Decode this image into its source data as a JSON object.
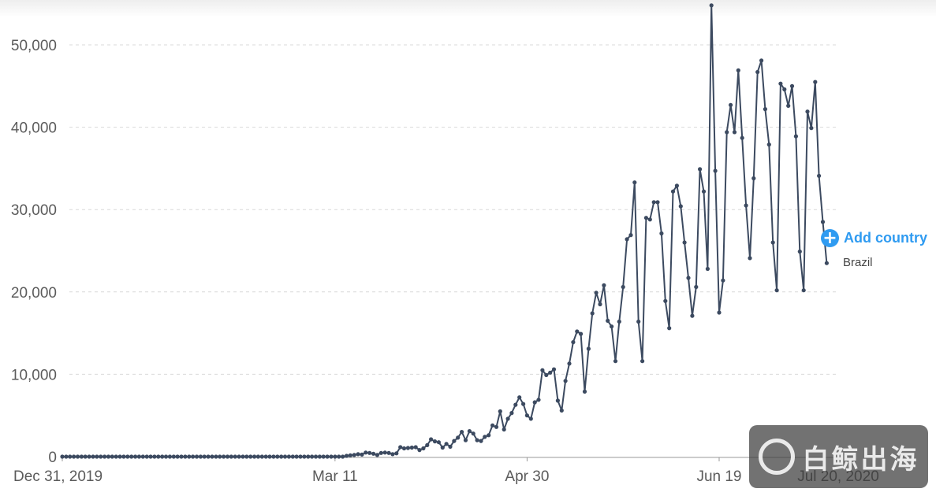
{
  "chart_data": {
    "type": "line",
    "y_ticks": [
      "0",
      "10,000",
      "20,000",
      "30,000",
      "40,000",
      "50,000"
    ],
    "y_tick_values": [
      0,
      10000,
      20000,
      30000,
      40000,
      50000
    ],
    "x_ticks": [
      "Dec 31, 2019",
      "Mar 11",
      "Apr 30",
      "Jun 19",
      "Jul 20, 2020"
    ],
    "x_tick_dates": [
      "2019-12-31",
      "2020-03-11",
      "2020-04-30",
      "2020-06-19",
      "2020-07-20"
    ],
    "x_range": [
      "2019-12-31",
      "2020-07-20"
    ],
    "ylim": [
      0,
      55000
    ],
    "grid": true,
    "series": [
      {
        "name": "Brazil",
        "color": "#3c4a60",
        "points": [
          [
            "2020-03-14",
            100
          ],
          [
            "2020-03-15",
            150
          ],
          [
            "2020-03-16",
            200
          ],
          [
            "2020-03-17",
            300
          ],
          [
            "2020-03-18",
            250
          ],
          [
            "2020-03-19",
            500
          ],
          [
            "2020-03-20",
            450
          ],
          [
            "2020-03-21",
            350
          ],
          [
            "2020-03-22",
            200
          ],
          [
            "2020-03-23",
            450
          ],
          [
            "2020-03-24",
            500
          ],
          [
            "2020-03-25",
            450
          ],
          [
            "2020-03-26",
            300
          ],
          [
            "2020-03-27",
            400
          ],
          [
            "2020-03-28",
            1150
          ],
          [
            "2020-03-29",
            1000
          ],
          [
            "2020-03-30",
            1050
          ],
          [
            "2020-03-31",
            1100
          ],
          [
            "2020-04-01",
            1150
          ],
          [
            "2020-04-02",
            800
          ],
          [
            "2020-04-03",
            1000
          ],
          [
            "2020-04-04",
            1400
          ],
          [
            "2020-04-05",
            2100
          ],
          [
            "2020-04-06",
            1850
          ],
          [
            "2020-04-07",
            1750
          ],
          [
            "2020-04-08",
            1100
          ],
          [
            "2020-04-09",
            1550
          ],
          [
            "2020-04-10",
            1200
          ],
          [
            "2020-04-11",
            1900
          ],
          [
            "2020-04-12",
            2300
          ],
          [
            "2020-04-13",
            3000
          ],
          [
            "2020-04-14",
            2000
          ],
          [
            "2020-04-15",
            3100
          ],
          [
            "2020-04-16",
            2800
          ],
          [
            "2020-04-17",
            2000
          ],
          [
            "2020-04-18",
            1900
          ],
          [
            "2020-04-19",
            2400
          ],
          [
            "2020-04-20",
            2600
          ],
          [
            "2020-04-21",
            3800
          ],
          [
            "2020-04-22",
            3600
          ],
          [
            "2020-04-23",
            5500
          ],
          [
            "2020-04-24",
            3300
          ],
          [
            "2020-04-25",
            4600
          ],
          [
            "2020-04-26",
            5300
          ],
          [
            "2020-04-27",
            6300
          ],
          [
            "2020-04-28",
            7200
          ],
          [
            "2020-04-29",
            6400
          ],
          [
            "2020-04-30",
            5000
          ],
          [
            "2020-05-01",
            4600
          ],
          [
            "2020-05-02",
            6600
          ],
          [
            "2020-05-03",
            6900
          ],
          [
            "2020-05-04",
            10500
          ],
          [
            "2020-05-05",
            9900
          ],
          [
            "2020-05-06",
            10200
          ],
          [
            "2020-05-07",
            10600
          ],
          [
            "2020-05-08",
            6800
          ],
          [
            "2020-05-09",
            5600
          ],
          [
            "2020-05-10",
            9200
          ],
          [
            "2020-05-11",
            11300
          ],
          [
            "2020-05-12",
            13900
          ],
          [
            "2020-05-13",
            15200
          ],
          [
            "2020-05-14",
            14900
          ],
          [
            "2020-05-15",
            7900
          ],
          [
            "2020-05-16",
            13100
          ],
          [
            "2020-05-17",
            17400
          ],
          [
            "2020-05-18",
            19900
          ],
          [
            "2020-05-19",
            18500
          ],
          [
            "2020-05-20",
            20800
          ],
          [
            "2020-05-21",
            16500
          ],
          [
            "2020-05-22",
            15800
          ],
          [
            "2020-05-23",
            11600
          ],
          [
            "2020-05-24",
            16400
          ],
          [
            "2020-05-25",
            20600
          ],
          [
            "2020-05-26",
            26400
          ],
          [
            "2020-05-27",
            26900
          ],
          [
            "2020-05-28",
            33300
          ],
          [
            "2020-05-29",
            16400
          ],
          [
            "2020-05-30",
            11600
          ],
          [
            "2020-05-31",
            29000
          ],
          [
            "2020-06-01",
            28800
          ],
          [
            "2020-06-02",
            30900
          ],
          [
            "2020-06-03",
            30900
          ],
          [
            "2020-06-04",
            27100
          ],
          [
            "2020-06-05",
            18900
          ],
          [
            "2020-06-06",
            15600
          ],
          [
            "2020-06-07",
            32200
          ],
          [
            "2020-06-08",
            32900
          ],
          [
            "2020-06-09",
            30400
          ],
          [
            "2020-06-10",
            26000
          ],
          [
            "2020-06-11",
            21700
          ],
          [
            "2020-06-12",
            17100
          ],
          [
            "2020-06-13",
            20600
          ],
          [
            "2020-06-14",
            34900
          ],
          [
            "2020-06-15",
            32200
          ],
          [
            "2020-06-16",
            22800
          ],
          [
            "2020-06-17",
            54800
          ],
          [
            "2020-06-18",
            34700
          ],
          [
            "2020-06-19",
            17500
          ],
          [
            "2020-06-20",
            21400
          ],
          [
            "2020-06-21",
            39400
          ],
          [
            "2020-06-22",
            42700
          ],
          [
            "2020-06-23",
            39400
          ],
          [
            "2020-06-24",
            46900
          ],
          [
            "2020-06-25",
            38700
          ],
          [
            "2020-06-26",
            30500
          ],
          [
            "2020-06-27",
            24100
          ],
          [
            "2020-06-28",
            33800
          ],
          [
            "2020-06-29",
            46700
          ],
          [
            "2020-06-30",
            48100
          ],
          [
            "2020-07-01",
            42200
          ],
          [
            "2020-07-02",
            37900
          ],
          [
            "2020-07-03",
            26000
          ],
          [
            "2020-07-04",
            20200
          ],
          [
            "2020-07-05",
            45300
          ],
          [
            "2020-07-06",
            44600
          ],
          [
            "2020-07-07",
            42600
          ],
          [
            "2020-07-08",
            45000
          ],
          [
            "2020-07-09",
            38900
          ],
          [
            "2020-07-10",
            24900
          ],
          [
            "2020-07-11",
            20200
          ],
          [
            "2020-07-12",
            41900
          ],
          [
            "2020-07-13",
            39900
          ],
          [
            "2020-07-14",
            45500
          ],
          [
            "2020-07-15",
            34100
          ],
          [
            "2020-07-16",
            28500
          ],
          [
            "2020-07-17",
            23500
          ]
        ]
      }
    ]
  },
  "legend": {
    "add_country_label": "Add country",
    "add_country_icon": "plus-circle-icon",
    "series_label": "Brazil",
    "accent_color": "#2f9bf1"
  },
  "watermark": {
    "text": "白鲸出海",
    "logo_icon": "whale-logo-icon"
  }
}
